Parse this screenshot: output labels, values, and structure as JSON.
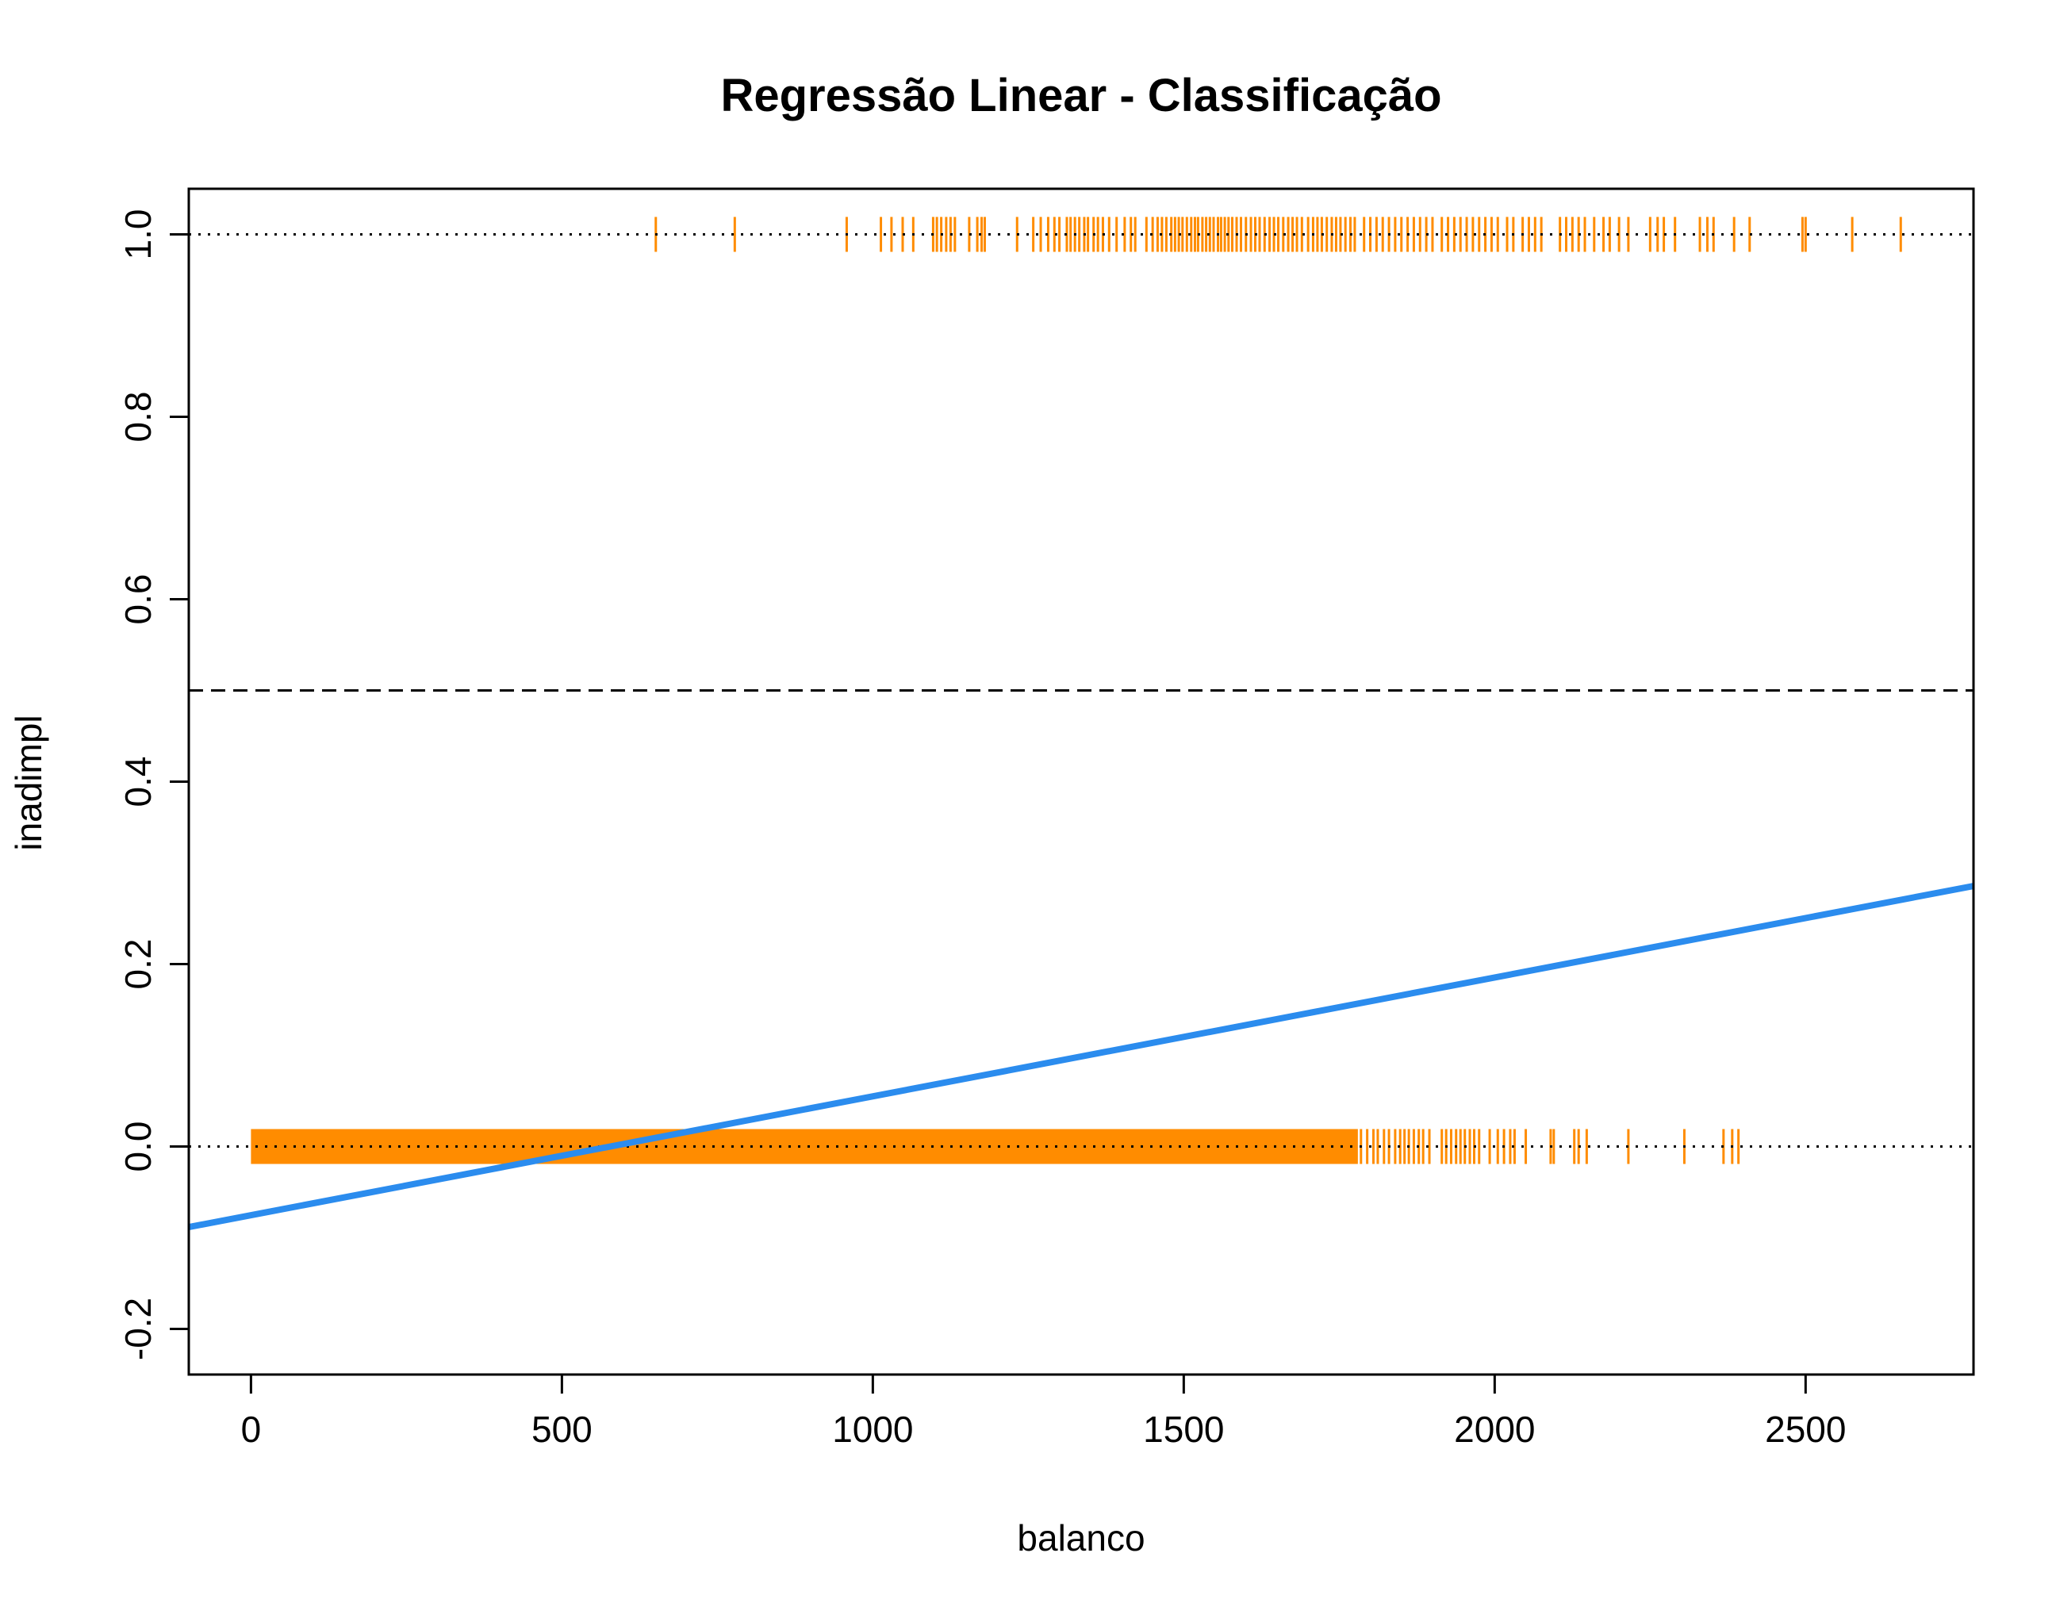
{
  "chart_data": {
    "type": "scatter",
    "title": "Regressão Linear - Classificação",
    "xlabel": "balanco",
    "ylabel": "inadimpl",
    "xlim": [
      -100,
      2770
    ],
    "ylim": [
      -0.25,
      1.05
    ],
    "x_ticks": [
      0,
      500,
      1000,
      1500,
      2000,
      2500
    ],
    "y_ticks": [
      -0.2,
      0.0,
      0.2,
      0.4,
      0.6,
      0.8,
      1.0
    ],
    "y_tick_labels": [
      "-0.2",
      "0.0",
      "0.2",
      "0.4",
      "0.6",
      "0.8",
      "1.0"
    ],
    "grid": false,
    "legend": "none",
    "reference_lines": [
      {
        "y": 1.0,
        "style": "dotted",
        "color": "#000000"
      },
      {
        "y": 0.0,
        "style": "dotted",
        "color": "#000000"
      },
      {
        "y": 0.5,
        "style": "dashed",
        "color": "#000000"
      }
    ],
    "regression_line": {
      "intercept": -0.0753,
      "slope": 0.0001303,
      "color": "#2b8cee"
    },
    "series": [
      {
        "y": 1,
        "color": "#ff8c00",
        "x": [
          651,
          778,
          958,
          1013,
          1030,
          1048,
          1065,
          1097,
          1103,
          1110,
          1118,
          1125,
          1132,
          1155,
          1168,
          1175,
          1180,
          1232,
          1258,
          1270,
          1282,
          1292,
          1300,
          1312,
          1318,
          1325,
          1332,
          1340,
          1346,
          1355,
          1362,
          1370,
          1380,
          1392,
          1405,
          1415,
          1422,
          1440,
          1450,
          1458,
          1465,
          1472,
          1480,
          1486,
          1492,
          1498,
          1505,
          1512,
          1518,
          1523,
          1530,
          1536,
          1542,
          1548,
          1555,
          1560,
          1566,
          1572,
          1578,
          1585,
          1592,
          1600,
          1608,
          1615,
          1622,
          1630,
          1638,
          1645,
          1652,
          1660,
          1668,
          1675,
          1682,
          1690,
          1700,
          1708,
          1715,
          1722,
          1730,
          1738,
          1745,
          1752,
          1760,
          1768,
          1775,
          1790,
          1800,
          1810,
          1820,
          1830,
          1840,
          1850,
          1860,
          1870,
          1880,
          1890,
          1900,
          1915,
          1925,
          1935,
          1945,
          1955,
          1965,
          1975,
          1985,
          1995,
          2005,
          2020,
          2030,
          2045,
          2055,
          2065,
          2075,
          2105,
          2115,
          2125,
          2135,
          2145,
          2160,
          2175,
          2185,
          2200,
          2215,
          2250,
          2262,
          2272,
          2290,
          2330,
          2342,
          2352,
          2385,
          2410,
          2495,
          2500,
          2575,
          2653
        ]
      },
      {
        "y": 0,
        "color": "#ff8c00",
        "dense_range": [
          0,
          1780
        ],
        "x": [
          1785,
          1795,
          1805,
          1812,
          1822,
          1830,
          1840,
          1848,
          1855,
          1862,
          1870,
          1878,
          1885,
          1895,
          1915,
          1922,
          1930,
          1938,
          1945,
          1952,
          1960,
          1967,
          1975,
          1992,
          2005,
          2015,
          2025,
          2032,
          2050,
          2090,
          2095,
          2128,
          2135,
          2148,
          2215,
          2305,
          2368,
          2382,
          2392
        ]
      }
    ]
  }
}
